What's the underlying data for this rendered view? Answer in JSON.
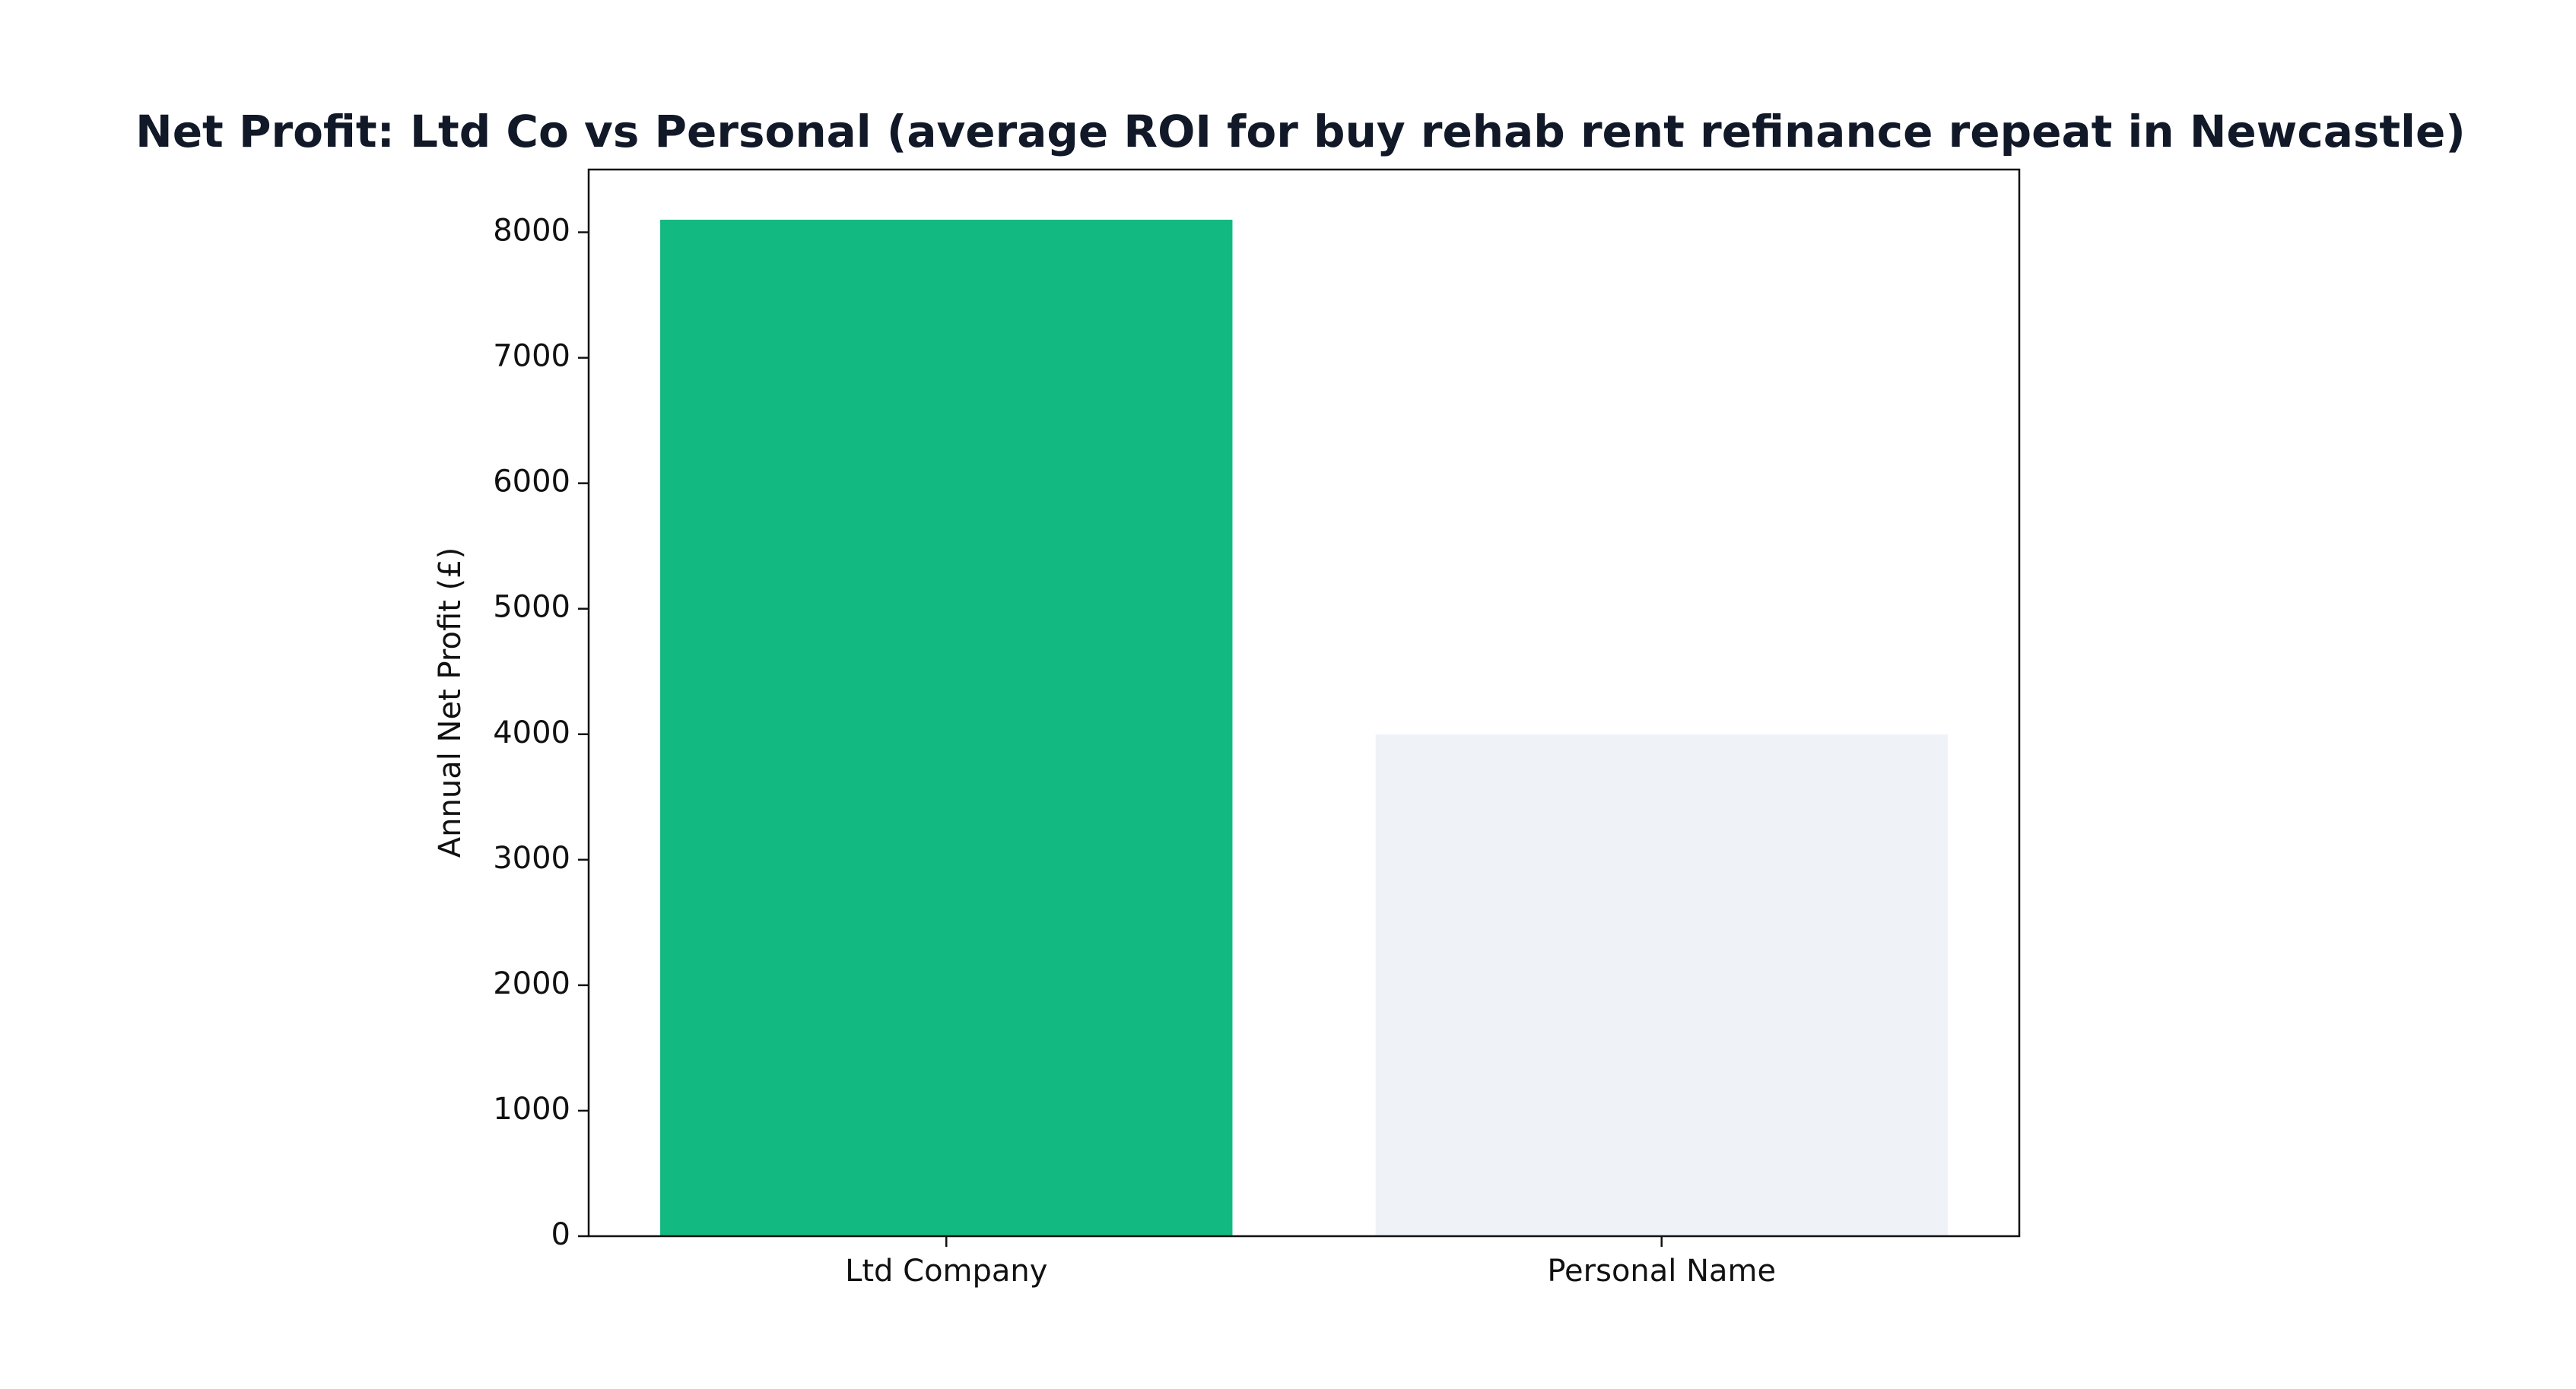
{
  "chart_data": {
    "type": "bar",
    "title": "Net Profit: Ltd Co vs Personal (average ROI for buy rehab rent refinance repeat in Newcastle)",
    "y_label": "Annual Net Profit (£)",
    "categories": [
      "Ltd Company",
      "Personal Name"
    ],
    "values": [
      8100,
      4000
    ],
    "colors": [
      "#12b981",
      "#eff3f8"
    ],
    "ylim": [
      0,
      8500
    ],
    "yticks": [
      0,
      1000,
      2000,
      3000,
      4000,
      5000,
      6000,
      7000,
      8000
    ],
    "grid": false
  }
}
